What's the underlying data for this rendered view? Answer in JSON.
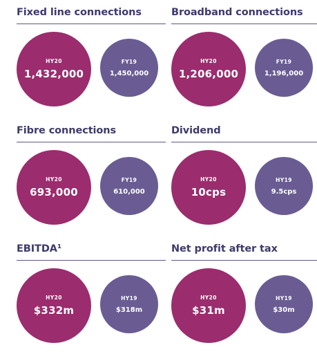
{
  "colors": {
    "title": "#3e3a6b",
    "rule": "#5d5690",
    "current_period_circle": "#9b2c6e",
    "prior_period_circle": "#6a5c93",
    "circle_text": "#ffffff"
  },
  "panels": [
    {
      "title": "Fixed line connections",
      "primary": {
        "period": "HY20",
        "value": "1,432,000"
      },
      "secondary": {
        "period": "FY19",
        "value": "1,450,000"
      }
    },
    {
      "title": "Broadband connections",
      "primary": {
        "period": "HY20",
        "value": "1,206,000"
      },
      "secondary": {
        "period": "FY19",
        "value": "1,196,000"
      }
    },
    {
      "title": "Fibre connections",
      "primary": {
        "period": "HY20",
        "value": "693,000"
      },
      "secondary": {
        "period": "FY19",
        "value": "610,000"
      }
    },
    {
      "title": "Dividend",
      "primary": {
        "period": "HY20",
        "value": "10cps"
      },
      "secondary": {
        "period": "HY19",
        "value": "9.5cps"
      }
    },
    {
      "title": "EBITDA¹",
      "primary": {
        "period": "HY20",
        "value": "$332m"
      },
      "secondary": {
        "period": "HY19",
        "value": "$318m"
      }
    },
    {
      "title": "Net profit after tax",
      "primary": {
        "period": "HY20",
        "value": "$31m"
      },
      "secondary": {
        "period": "HY19",
        "value": "$30m"
      }
    }
  ],
  "chart_data": [
    {
      "type": "table",
      "title": "Fixed line connections",
      "categories": [
        "HY20",
        "FY19"
      ],
      "values": [
        1432000,
        1450000
      ]
    },
    {
      "type": "table",
      "title": "Broadband connections",
      "categories": [
        "HY20",
        "FY19"
      ],
      "values": [
        1206000,
        1196000
      ]
    },
    {
      "type": "table",
      "title": "Fibre connections",
      "categories": [
        "HY20",
        "FY19"
      ],
      "values": [
        693000,
        610000
      ]
    },
    {
      "type": "table",
      "title": "Dividend",
      "categories": [
        "HY20",
        "HY19"
      ],
      "values": [
        10,
        9.5
      ]
    },
    {
      "type": "table",
      "title": "EBITDA¹",
      "categories": [
        "HY20",
        "HY19"
      ],
      "values": [
        332,
        318
      ]
    },
    {
      "type": "table",
      "title": "Net profit after tax",
      "categories": [
        "HY20",
        "HY19"
      ],
      "values": [
        31,
        30
      ]
    }
  ]
}
